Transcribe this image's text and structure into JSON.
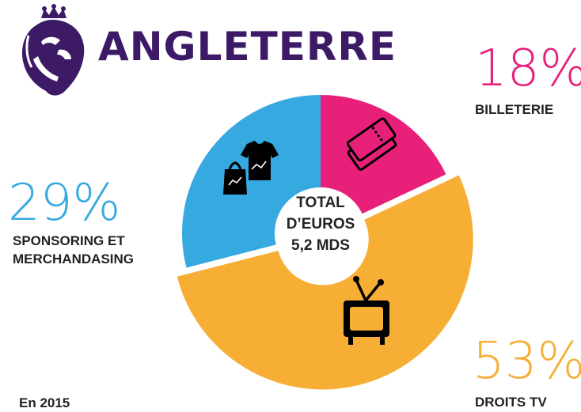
{
  "header": {
    "title": "ANGLETERRE",
    "logo_icon": "premier-league-lion-logo-icon"
  },
  "center": {
    "line1": "TOTAL",
    "line2": "D’EUROS",
    "line3": "5,2 MDS"
  },
  "chart_data": {
    "type": "pie",
    "donut": true,
    "total_label": "TOTAL D’EUROS 5,2 MDS",
    "slices": [
      {
        "label": "BILLETERIE",
        "value": 18,
        "pct_text": "18%",
        "color": "#e8207a",
        "icon": "tickets-icon"
      },
      {
        "label": "DROITS TV",
        "value": 53,
        "pct_text": "53%",
        "color": "#f7ae35",
        "icon": "tv-icon"
      },
      {
        "label": "SPONSORING ET MERCHANDASING",
        "label_lines": [
          "SPONSORING ET",
          "MERCHANDASING"
        ],
        "value": 29,
        "pct_text": "29%",
        "color": "#36a9e1",
        "icon": "merch-icon"
      }
    ]
  },
  "footer": {
    "text": "En 2015"
  }
}
